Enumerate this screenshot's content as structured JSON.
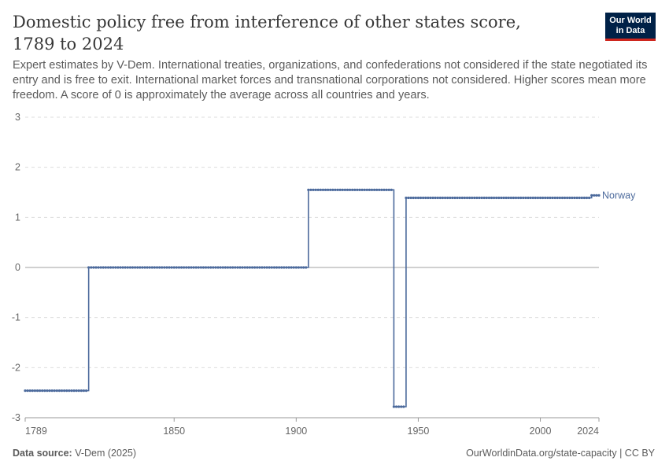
{
  "header": {
    "title": "Domestic policy free from interference of other states score, 1789 to 2024",
    "subtitle": "Expert estimates by V-Dem. International treaties, organizations, and confederations not considered if the state negotiated its entry and is free to exit. International market forces and transnational corporations not considered. Higher scores mean more freedom. A score of 0 is approximately the average across all countries and years."
  },
  "logo": {
    "line1": "Our World",
    "line2": "in Data"
  },
  "footer": {
    "source_label": "Data source:",
    "source_value": "V-Dem (2025)",
    "url": "OurWorldinData.org/state-capacity | CC BY"
  },
  "colors": {
    "series": "#4c6a9c",
    "grid": "#dddddd",
    "zero_line": "#a1a1a1",
    "axis_text": "#666666"
  },
  "chart_data": {
    "type": "line",
    "title": "Domestic policy free from interference of other states score, 1789 to 2024",
    "xlabel": "",
    "ylabel": "",
    "xlim": [
      1789,
      2024
    ],
    "ylim": [
      -3,
      3
    ],
    "x_ticks": [
      1789,
      1850,
      1900,
      1950,
      2000,
      2024
    ],
    "y_ticks": [
      3,
      2,
      1,
      0,
      -1,
      -2,
      -3
    ],
    "grid": true,
    "series": [
      {
        "name": "Norway",
        "segments": [
          {
            "start": 1789,
            "end": 1814,
            "value": -2.46
          },
          {
            "start": 1815,
            "end": 1904,
            "value": 0.0
          },
          {
            "start": 1905,
            "end": 1939,
            "value": 1.55
          },
          {
            "start": 1940,
            "end": 1944,
            "value": -2.78
          },
          {
            "start": 1945,
            "end": 2020,
            "value": 1.39
          },
          {
            "start": 2021,
            "end": 2024,
            "value": 1.44
          }
        ]
      }
    ]
  }
}
